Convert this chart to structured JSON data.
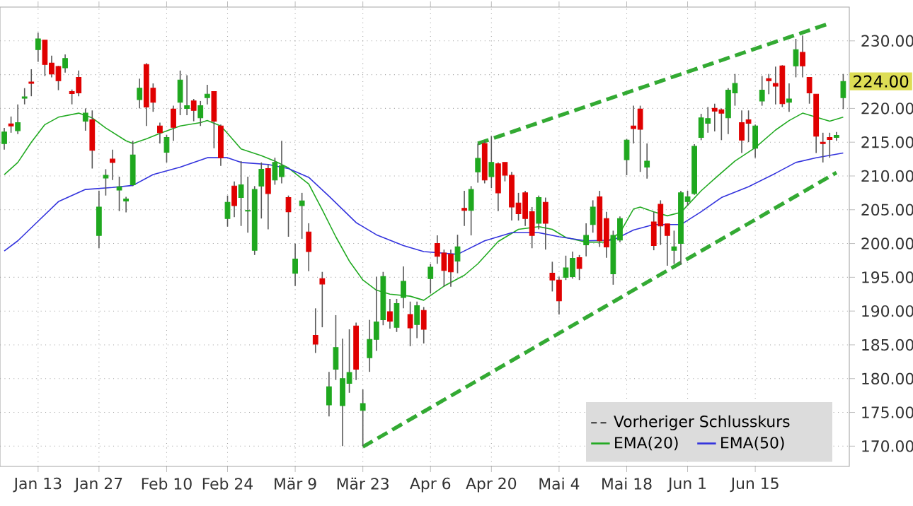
{
  "chart_data": {
    "type": "candlestick",
    "categories": [
      null,
      null,
      null,
      null,
      null,
      "Jan 13",
      null,
      null,
      null,
      null,
      null,
      null,
      null,
      null,
      "Jan 27",
      null,
      null,
      null,
      null,
      null,
      null,
      null,
      null,
      null,
      "Feb 10",
      null,
      null,
      null,
      null,
      null,
      null,
      null,
      null,
      "Feb 24",
      null,
      null,
      null,
      null,
      null,
      null,
      null,
      null,
      null,
      "Mär 9",
      null,
      null,
      null,
      null,
      null,
      null,
      null,
      null,
      null,
      "Mär 23",
      null,
      null,
      null,
      null,
      null,
      null,
      null,
      null,
      null,
      "Apr 6",
      null,
      null,
      null,
      null,
      null,
      null,
      null,
      null,
      "Apr 20",
      null,
      null,
      null,
      null,
      null,
      null,
      null,
      null,
      null,
      "Mai 4",
      null,
      null,
      null,
      null,
      null,
      null,
      null,
      null,
      null,
      "Mai 18",
      null,
      null,
      null,
      null,
      null,
      null,
      null,
      null,
      "Jun 1",
      null,
      null,
      null,
      null,
      null,
      null,
      null,
      null,
      null,
      "Jun 15",
      null,
      null,
      null,
      null,
      null,
      null,
      null,
      null,
      null,
      null,
      null,
      null,
      null
    ],
    "ohlc": [
      [
        214.8,
        217.1,
        213.9,
        216.5
      ],
      [
        217.7,
        218.8,
        216.4,
        217.4
      ],
      [
        216.7,
        220.6,
        216.2,
        217.9
      ],
      [
        221.5,
        223.0,
        220.6,
        221.7
      ],
      [
        223.9,
        225.8,
        221.8,
        223.7
      ],
      [
        228.7,
        231.2,
        226.9,
        230.3
      ],
      [
        230.1,
        230.1,
        224.8,
        226.5
      ],
      [
        226.7,
        227.8,
        224.6,
        225.1
      ],
      [
        226.2,
        226.3,
        222.7,
        224.1
      ],
      [
        226.0,
        228.0,
        225.3,
        227.4
      ],
      [
        222.5,
        222.8,
        220.6,
        222.2
      ],
      [
        224.6,
        225.6,
        221.8,
        222.3
      ],
      [
        218.1,
        220.0,
        216.7,
        219.3
      ],
      [
        218.3,
        219.7,
        211.1,
        213.8
      ],
      [
        201.2,
        207.8,
        199.3,
        205.4
      ],
      [
        209.7,
        211.0,
        207.1,
        210.1
      ],
      [
        212.5,
        213.9,
        209.4,
        212.0
      ],
      [
        207.9,
        209.9,
        204.8,
        208.4
      ],
      [
        206.3,
        206.9,
        204.6,
        206.6
      ],
      [
        208.7,
        215.2,
        208.5,
        213.1
      ],
      [
        221.3,
        224.4,
        220.0,
        223.0
      ],
      [
        226.5,
        226.7,
        217.4,
        220.2
      ],
      [
        223.0,
        223.7,
        219.5,
        220.9
      ],
      [
        217.4,
        217.9,
        214.8,
        216.4
      ],
      [
        213.5,
        216.1,
        212.0,
        215.7
      ],
      [
        219.9,
        220.4,
        215.2,
        217.2
      ],
      [
        220.9,
        225.6,
        219.0,
        224.2
      ],
      [
        220.0,
        224.9,
        219.0,
        220.4
      ],
      [
        221.1,
        221.4,
        218.1,
        219.7
      ],
      [
        218.6,
        221.1,
        217.4,
        220.4
      ],
      [
        221.6,
        223.5,
        220.6,
        222.1
      ],
      [
        222.5,
        222.5,
        214.1,
        218.1
      ],
      [
        217.4,
        217.6,
        211.5,
        212.7
      ],
      [
        203.7,
        207.1,
        202.5,
        206.1
      ],
      [
        208.5,
        209.2,
        203.9,
        205.6
      ],
      [
        206.8,
        212.2,
        202.6,
        208.7
      ],
      [
        204.8,
        209.9,
        201.6,
        204.9
      ],
      [
        199.0,
        208.5,
        198.3,
        208.0
      ],
      [
        208.5,
        212.0,
        203.7,
        211.0
      ],
      [
        211.1,
        211.7,
        202.1,
        207.4
      ],
      [
        209.4,
        212.7,
        208.7,
        212.0
      ],
      [
        209.9,
        215.2,
        208.9,
        211.5
      ],
      [
        206.8,
        207.1,
        201.0,
        204.7
      ],
      [
        195.6,
        200.0,
        193.7,
        197.7
      ],
      [
        205.6,
        207.5,
        200.7,
        206.3
      ],
      [
        201.7,
        203.0,
        195.9,
        198.8
      ],
      [
        186.4,
        190.4,
        183.8,
        185.1
      ],
      [
        194.8,
        195.8,
        187.6,
        194.0
      ],
      [
        176.1,
        181.0,
        174.4,
        178.8
      ],
      [
        181.4,
        189.4,
        179.8,
        184.6
      ],
      [
        176.0,
        185.9,
        170.0,
        180.0
      ],
      [
        179.3,
        187.3,
        177.9,
        180.9
      ],
      [
        187.8,
        188.3,
        179.8,
        181.4
      ],
      [
        175.3,
        178.4,
        170.0,
        176.3
      ],
      [
        183.1,
        188.7,
        181.0,
        185.8
      ],
      [
        185.8,
        195.1,
        184.1,
        188.4
      ],
      [
        188.7,
        195.8,
        187.9,
        195.1
      ],
      [
        189.9,
        191.8,
        187.4,
        188.5
      ],
      [
        187.6,
        191.8,
        186.9,
        191.1
      ],
      [
        192.0,
        196.6,
        190.4,
        194.4
      ],
      [
        189.5,
        191.4,
        184.8,
        187.5
      ],
      [
        188.0,
        191.4,
        186.0,
        190.8
      ],
      [
        190.1,
        190.6,
        185.2,
        187.3
      ],
      [
        194.8,
        197.0,
        192.6,
        196.5
      ],
      [
        200.0,
        201.2,
        197.0,
        198.1
      ],
      [
        198.6,
        199.1,
        193.6,
        196.0
      ],
      [
        198.4,
        199.1,
        193.6,
        195.8
      ],
      [
        197.4,
        201.3,
        195.6,
        199.5
      ],
      [
        205.2,
        207.8,
        202.6,
        204.9
      ],
      [
        204.9,
        208.5,
        201.2,
        208.0
      ],
      [
        210.6,
        214.8,
        209.0,
        212.6
      ],
      [
        214.8,
        215.2,
        208.9,
        209.4
      ],
      [
        209.9,
        215.9,
        208.2,
        212.0
      ],
      [
        211.8,
        212.0,
        204.8,
        207.5
      ],
      [
        212.0,
        212.0,
        209.2,
        210.1
      ],
      [
        210.1,
        210.6,
        203.4,
        205.4
      ],
      [
        206.0,
        207.5,
        203.4,
        204.4
      ],
      [
        207.5,
        207.8,
        202.6,
        203.7
      ],
      [
        204.7,
        205.4,
        199.3,
        201.2
      ],
      [
        203.0,
        207.1,
        202.1,
        206.8
      ],
      [
        206.1,
        206.8,
        199.1,
        203.0
      ],
      [
        195.6,
        197.3,
        192.9,
        194.6
      ],
      [
        194.6,
        195.1,
        189.5,
        191.5
      ],
      [
        195.0,
        198.2,
        194.6,
        196.4
      ],
      [
        195.1,
        198.8,
        194.8,
        197.8
      ],
      [
        197.9,
        198.3,
        194.6,
        196.3
      ],
      [
        199.8,
        203.0,
        198.1,
        201.2
      ],
      [
        202.8,
        206.4,
        201.6,
        205.4
      ],
      [
        206.9,
        207.8,
        199.5,
        200.4
      ],
      [
        203.7,
        204.7,
        197.9,
        199.5
      ],
      [
        195.5,
        201.9,
        193.9,
        201.2
      ],
      [
        200.5,
        204.0,
        200.2,
        203.7
      ],
      [
        212.4,
        215.5,
        210.1,
        215.3
      ],
      [
        217.4,
        220.4,
        214.8,
        217.0
      ],
      [
        219.9,
        220.4,
        210.6,
        216.9
      ],
      [
        211.3,
        214.8,
        209.6,
        212.2
      ],
      [
        203.2,
        204.7,
        199.0,
        199.7
      ],
      [
        205.8,
        206.4,
        199.8,
        202.6
      ],
      [
        202.9,
        202.9,
        196.7,
        201.2
      ],
      [
        199.0,
        201.9,
        197.0,
        199.5
      ],
      [
        200.0,
        207.8,
        196.9,
        207.5
      ],
      [
        206.2,
        207.8,
        205.6,
        206.9
      ],
      [
        207.4,
        214.7,
        207.2,
        214.4
      ],
      [
        215.7,
        219.2,
        215.3,
        218.6
      ],
      [
        217.8,
        220.2,
        216.4,
        218.5
      ],
      [
        220.0,
        220.7,
        216.6,
        219.6
      ],
      [
        219.8,
        220.0,
        215.3,
        219.3
      ],
      [
        218.6,
        223.0,
        216.2,
        222.7
      ],
      [
        222.3,
        225.1,
        220.4,
        223.7
      ],
      [
        217.9,
        219.7,
        213.4,
        215.3
      ],
      [
        218.3,
        219.7,
        215.0,
        217.8
      ],
      [
        214.1,
        217.6,
        212.7,
        217.4
      ],
      [
        221.1,
        224.8,
        220.4,
        222.7
      ],
      [
        224.4,
        225.1,
        222.1,
        224.1
      ],
      [
        223.7,
        226.2,
        220.6,
        223.3
      ],
      [
        226.3,
        226.4,
        220.2,
        220.7
      ],
      [
        220.9,
        223.7,
        219.5,
        221.4
      ],
      [
        226.3,
        230.3,
        224.6,
        228.7
      ],
      [
        228.3,
        230.8,
        224.6,
        226.3
      ],
      [
        224.6,
        224.6,
        220.7,
        222.3
      ],
      [
        222.1,
        222.1,
        213.4,
        215.9
      ],
      [
        215.0,
        216.4,
        212.0,
        214.8
      ],
      [
        215.7,
        216.4,
        212.7,
        215.4
      ],
      [
        215.7,
        216.5,
        215.2,
        216.0
      ],
      [
        221.6,
        225.1,
        219.9,
        224.0
      ]
    ],
    "series": [
      {
        "name": "EMA(20)",
        "type": "line",
        "color": "#22aa22",
        "values": [
          210.2,
          null,
          212.0,
          null,
          215.0,
          null,
          217.6,
          null,
          218.7,
          null,
          null,
          219.3,
          null,
          218.6,
          null,
          217.1,
          null,
          null,
          215.2,
          214.8,
          null,
          215.5,
          null,
          216.3,
          null,
          null,
          217.4,
          null,
          null,
          217.9,
          218.2,
          null,
          217.4,
          216.3,
          null,
          214.0,
          null,
          null,
          213.0,
          null,
          212.2,
          null,
          211.2,
          null,
          null,
          208.8,
          null,
          205.0,
          null,
          201.0,
          null,
          197.4,
          null,
          194.6,
          null,
          193.1,
          null,
          192.5,
          null,
          null,
          192.2,
          null,
          191.6,
          null,
          null,
          193.7,
          null,
          null,
          195.3,
          null,
          197.0,
          null,
          null,
          200.3,
          null,
          null,
          202.1,
          null,
          null,
          202.5,
          null,
          202.1,
          null,
          200.9,
          null,
          null,
          200.2,
          null,
          null,
          200.2,
          null,
          201.6,
          null,
          205.1,
          205.4,
          null,
          204.7,
          null,
          204.1,
          null,
          204.6,
          null,
          null,
          207.8,
          null,
          209.6,
          null,
          null,
          212.2,
          null,
          null,
          214.2,
          null,
          null,
          216.8,
          null,
          218.2,
          null,
          219.3,
          null,
          218.7,
          null,
          218.1,
          null,
          218.7
        ]
      },
      {
        "name": "EMA(50)",
        "type": "line",
        "color": "#3333dd",
        "values": [
          198.9,
          null,
          200.4,
          null,
          null,
          203.3,
          null,
          null,
          206.2,
          null,
          null,
          null,
          208.0,
          null,
          null,
          null,
          208.3,
          null,
          null,
          208.6,
          null,
          null,
          210.2,
          null,
          null,
          null,
          211.3,
          null,
          null,
          null,
          212.7,
          null,
          null,
          212.7,
          null,
          212.0,
          null,
          null,
          null,
          211.7,
          null,
          null,
          211.1,
          null,
          null,
          209.8,
          null,
          null,
          207.0,
          null,
          null,
          null,
          203.1,
          null,
          null,
          201.3,
          null,
          null,
          null,
          199.7,
          null,
          null,
          198.8,
          null,
          null,
          null,
          null,
          198.4,
          null,
          null,
          null,
          200.4,
          null,
          null,
          null,
          201.6,
          null,
          null,
          null,
          201.6,
          null,
          null,
          201.0,
          null,
          null,
          null,
          200.4,
          null,
          null,
          null,
          200.5,
          null,
          null,
          202.0,
          null,
          null,
          202.8,
          null,
          202.8,
          null,
          202.8,
          null,
          null,
          204.7,
          null,
          null,
          206.8,
          null,
          null,
          null,
          208.4,
          null,
          null,
          null,
          210.4,
          null,
          null,
          212.0,
          null,
          null,
          212.7,
          null,
          null,
          null,
          213.4
        ]
      },
      {
        "type": "line",
        "color": "#33aa33",
        "line_style": "dashed",
        "values": [
          null,
          null,
          null,
          null,
          null,
          null,
          null,
          null,
          null,
          null,
          null,
          null,
          null,
          null,
          null,
          null,
          null,
          null,
          null,
          null,
          null,
          null,
          null,
          null,
          null,
          null,
          null,
          null,
          null,
          null,
          null,
          null,
          null,
          null,
          null,
          null,
          null,
          null,
          null,
          null,
          null,
          null,
          null,
          null,
          null,
          null,
          null,
          null,
          null,
          null,
          null,
          null,
          null,
          null,
          null,
          null,
          null,
          null,
          null,
          null,
          null,
          null,
          null,
          null,
          null,
          null,
          null,
          null,
          null,
          null,
          214.8,
          null,
          null,
          null,
          null,
          null,
          null,
          null,
          null,
          null,
          null,
          null,
          null,
          null,
          null,
          null,
          null,
          null,
          null,
          null,
          null,
          null,
          null,
          null,
          null,
          null,
          null,
          null,
          null,
          null,
          null,
          null,
          null,
          null,
          null,
          null,
          null,
          null,
          null,
          null,
          null,
          null,
          null,
          null,
          null,
          null,
          null,
          null,
          null,
          null,
          null,
          null,
          232.6,
          null,
          null
        ]
      },
      {
        "type": "line",
        "color": "#33aa33",
        "line_style": "dashed",
        "values": [
          null,
          null,
          null,
          null,
          null,
          null,
          null,
          null,
          null,
          null,
          null,
          null,
          null,
          null,
          null,
          null,
          null,
          null,
          null,
          null,
          null,
          null,
          null,
          null,
          null,
          null,
          null,
          null,
          null,
          null,
          null,
          null,
          null,
          null,
          null,
          null,
          null,
          null,
          null,
          null,
          null,
          null,
          null,
          null,
          null,
          null,
          null,
          null,
          null,
          null,
          null,
          null,
          null,
          169.9,
          null,
          null,
          null,
          null,
          null,
          null,
          null,
          null,
          null,
          null,
          null,
          null,
          null,
          null,
          null,
          null,
          null,
          null,
          null,
          null,
          null,
          null,
          null,
          null,
          null,
          null,
          null,
          null,
          null,
          null,
          null,
          null,
          null,
          null,
          null,
          null,
          null,
          null,
          null,
          null,
          null,
          null,
          null,
          null,
          null,
          null,
          null,
          null,
          null,
          null,
          null,
          null,
          null,
          null,
          null,
          null,
          null,
          null,
          null,
          null,
          null,
          null,
          null,
          null,
          null,
          null,
          null,
          null,
          null,
          210.5,
          null
        ]
      }
    ],
    "ylim": [
      167,
      235
    ],
    "yticks": [
      {
        "value": 170,
        "label": "170.00"
      },
      {
        "value": 175,
        "label": "175.00"
      },
      {
        "value": 180,
        "label": "180.00"
      },
      {
        "value": 185,
        "label": "185.00"
      },
      {
        "value": 190,
        "label": "190.00"
      },
      {
        "value": 195,
        "label": "195.00"
      },
      {
        "value": 200,
        "label": "200.00"
      },
      {
        "value": 205,
        "label": "205.00"
      },
      {
        "value": 210,
        "label": "210.00"
      },
      {
        "value": 215,
        "label": "215.00"
      },
      {
        "value": 220,
        "label": "220.00"
      },
      {
        "value": 225,
        "label": null
      },
      {
        "value": 230,
        "label": "230.00"
      }
    ],
    "grid": true,
    "legend": "bottom right",
    "annotations": [
      "Vorheriger Schlusskurs",
      "224.00"
    ]
  }
}
